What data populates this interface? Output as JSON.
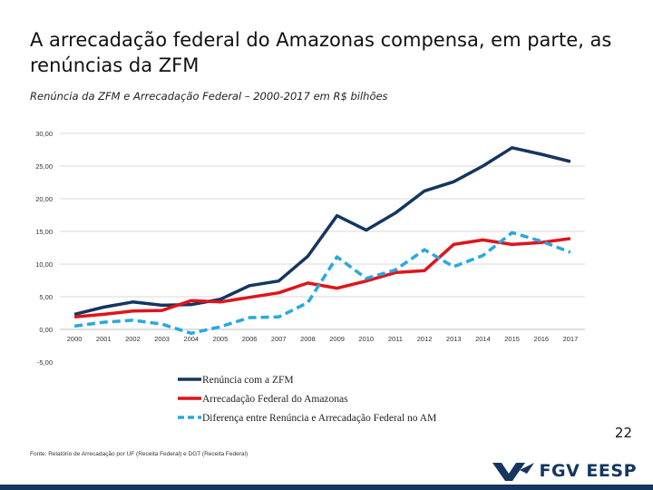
{
  "slide": {
    "title": "A arrecadação federal do Amazonas compensa, em parte, as renúncias da ZFM",
    "page_number": "22",
    "footnote": "Fonte: Relatório de Arrecadação por UF (Receita Federal) e DGT (Receita Federal)",
    "logo_text": "FGV EESP",
    "colors": {
      "navy": "#14365f",
      "red": "#e0141b",
      "cyan": "#29a8e0"
    }
  },
  "chart_data": {
    "type": "line",
    "title": "Renúncia da ZFM e Arrecadação Federal – 2000-2017 em R$ bilhões",
    "xlabel": "",
    "ylabel": "",
    "categories": [
      "2000",
      "2001",
      "2002",
      "2003",
      "2004",
      "2005",
      "2006",
      "2007",
      "2008",
      "2009",
      "2010",
      "2011",
      "2012",
      "2013",
      "2014",
      "2015",
      "2016",
      "2017"
    ],
    "yticks": [
      "-5,00",
      "0,00",
      "5,00",
      "10,00",
      "15,00",
      "20,00",
      "25,00",
      "30,00"
    ],
    "ylim": [
      -5,
      30
    ],
    "grid": true,
    "legend_position": "bottom",
    "series": [
      {
        "name": "Renúncia com a ZFM",
        "color": "#14365f",
        "dash": "solid",
        "values": [
          2.3,
          3.4,
          4.2,
          3.7,
          3.8,
          4.6,
          6.7,
          7.4,
          11.2,
          17.4,
          15.2,
          17.8,
          21.2,
          22.6,
          25.0,
          27.8,
          26.8,
          25.7
        ]
      },
      {
        "name": "Arrecadação Federal do Amazonas",
        "color": "#e0141b",
        "dash": "solid",
        "values": [
          1.9,
          2.3,
          2.8,
          2.9,
          4.4,
          4.2,
          4.9,
          5.6,
          7.1,
          6.3,
          7.4,
          8.7,
          9.0,
          13.0,
          13.7,
          13.0,
          13.3,
          13.9
        ]
      },
      {
        "name": "Diferença entre Renúncia e Arrecadação Federal no AM",
        "color": "#29a8e0",
        "dash": "dashed",
        "values": [
          0.5,
          1.1,
          1.4,
          0.8,
          -0.6,
          0.4,
          1.8,
          1.9,
          4.1,
          11.1,
          7.8,
          9.1,
          12.2,
          9.6,
          11.3,
          14.8,
          13.5,
          11.8
        ]
      }
    ]
  }
}
